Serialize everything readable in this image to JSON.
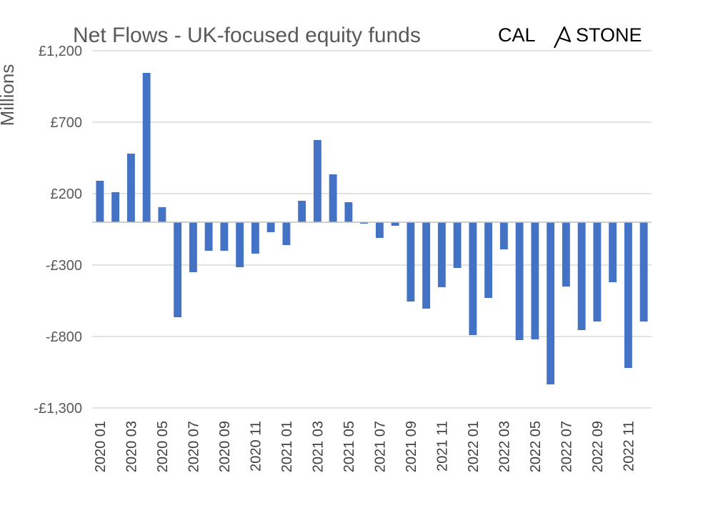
{
  "logo": {
    "left_text": "CAL",
    "right_text": "STONE"
  },
  "chart_data": {
    "type": "bar",
    "title": "Net Flows - UK-focused equity funds",
    "xlabel": "",
    "ylabel": "Millions",
    "ylim": [
      -1300,
      1200
    ],
    "yticks": [
      1200,
      700,
      200,
      -300,
      -800,
      -1300
    ],
    "ytick_labels": [
      "£1,200",
      "£700",
      "£200",
      "-£300",
      "-£800",
      "-£1,300"
    ],
    "grid": true,
    "bar_color": "#4472c4",
    "categories": [
      "2020 01",
      "2020 02",
      "2020 03",
      "2020 04",
      "2020 05",
      "2020 06",
      "2020 07",
      "2020 08",
      "2020 09",
      "2020 10",
      "2020 11",
      "2020 12",
      "2021 01",
      "2021 02",
      "2021 03",
      "2021 04",
      "2021 05",
      "2021 06",
      "2021 07",
      "2021 08",
      "2021 09",
      "2021 10",
      "2021 11",
      "2021 12",
      "2022 01",
      "2022 02",
      "2022 03",
      "2022 04",
      "2022 05",
      "2022 06",
      "2022 07",
      "2022 08",
      "2022 09",
      "2022 10",
      "2022 11",
      "2022 12"
    ],
    "x_tick_labels": [
      "2020 01",
      "2020 03",
      "2020 05",
      "2020 07",
      "2020 09",
      "2020 11",
      "2021 01",
      "2021 03",
      "2021 05",
      "2021 07",
      "2021 09",
      "2021 11",
      "2022 01",
      "2022 03",
      "2022 05",
      "2022 07",
      "2022 09",
      "2022 11"
    ],
    "values": [
      290,
      210,
      480,
      1045,
      105,
      -665,
      -350,
      -200,
      -200,
      -315,
      -220,
      -70,
      -160,
      150,
      575,
      335,
      140,
      -10,
      -110,
      -25,
      -555,
      -605,
      -455,
      -320,
      -790,
      -530,
      -190,
      -825,
      -820,
      -1135,
      -450,
      -755,
      -695,
      -420,
      -1020,
      -695
    ]
  }
}
